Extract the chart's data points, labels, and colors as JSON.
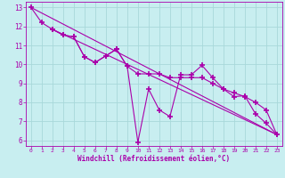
{
  "xlabel": "Windchill (Refroidissement éolien,°C)",
  "bg_color": "#c8eef0",
  "grid_color": "#a8d8da",
  "line_color": "#aa00aa",
  "axis_color": "#aa00aa",
  "xlim": [
    -0.5,
    23.5
  ],
  "ylim": [
    5.7,
    13.3
  ],
  "xticks": [
    0,
    1,
    2,
    3,
    4,
    5,
    6,
    7,
    8,
    9,
    10,
    11,
    12,
    13,
    14,
    15,
    16,
    17,
    18,
    19,
    20,
    21,
    22,
    23
  ],
  "yticks": [
    6,
    7,
    8,
    9,
    10,
    11,
    12,
    13
  ],
  "line1_x": [
    0,
    1,
    2,
    3,
    4,
    5,
    6,
    7,
    8,
    9,
    10,
    11,
    12,
    13,
    14,
    15,
    16,
    17,
    18,
    19,
    20,
    21,
    22,
    23
  ],
  "line1_y": [
    13.0,
    12.2,
    11.85,
    11.55,
    11.45,
    10.4,
    10.1,
    10.45,
    10.8,
    9.9,
    5.9,
    8.7,
    7.6,
    7.25,
    9.45,
    9.45,
    9.95,
    9.3,
    8.7,
    8.3,
    8.35,
    7.4,
    6.9,
    6.3
  ],
  "line2_x": [
    2,
    3,
    4,
    5,
    6,
    7,
    8,
    9,
    10,
    11,
    12,
    13,
    14,
    15,
    16,
    17,
    18,
    19,
    20,
    21,
    22,
    23
  ],
  "line2_y": [
    11.85,
    11.55,
    11.45,
    10.4,
    10.1,
    10.45,
    10.8,
    9.9,
    9.5,
    9.5,
    9.5,
    9.3,
    9.3,
    9.3,
    9.3,
    9.0,
    8.7,
    8.5,
    8.3,
    8.0,
    7.6,
    6.3
  ],
  "line3_x": [
    0,
    23
  ],
  "line3_y": [
    13.0,
    6.3
  ],
  "line4_x": [
    2,
    23
  ],
  "line4_y": [
    11.85,
    6.3
  ]
}
